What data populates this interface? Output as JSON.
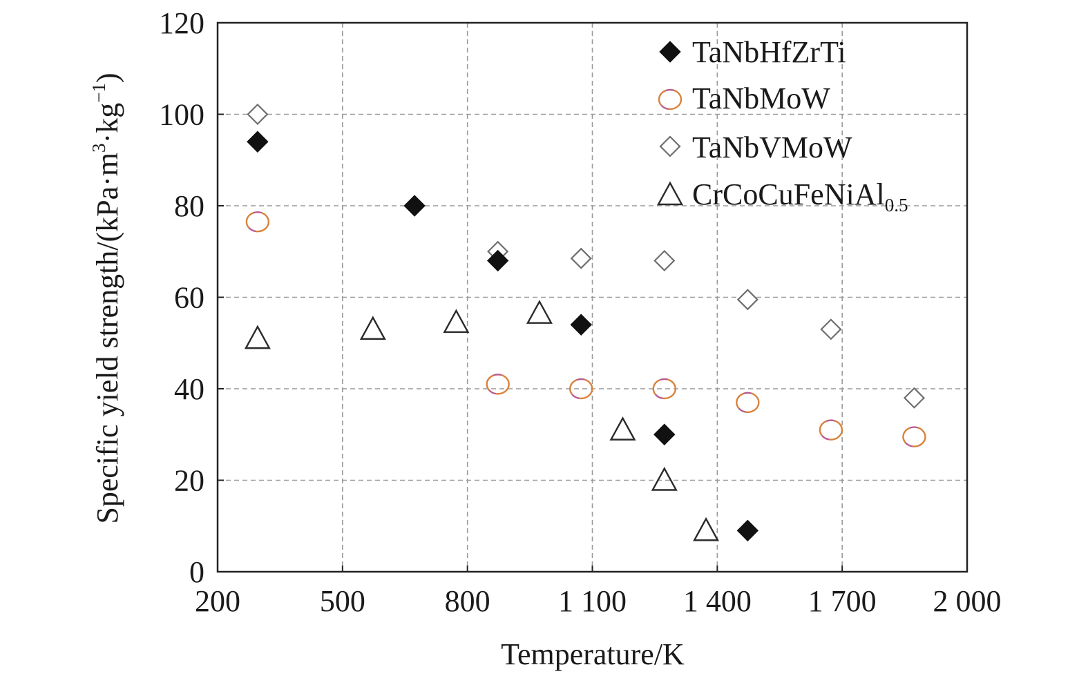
{
  "chart_data": {
    "type": "scatter",
    "xlabel": "Temperature/K",
    "ylabel": {
      "prefix": "Specific yield strength/(kPa·m",
      "exp1": "3",
      "middle": "·kg",
      "exp2": "−1",
      "suffix": ")"
    },
    "xlim": [
      200,
      2000
    ],
    "ylim": [
      0,
      120
    ],
    "x_ticks": [
      200,
      500,
      800,
      1100,
      1400,
      1700,
      2000
    ],
    "x_tick_labels": [
      "200",
      "500",
      "800",
      "1 100",
      "1 400",
      "1 700",
      "2 000"
    ],
    "y_ticks": [
      0,
      20,
      40,
      60,
      80,
      100,
      120
    ],
    "y_tick_labels": [
      "0",
      "20",
      "40",
      "60",
      "80",
      "100",
      "120"
    ],
    "grid": true,
    "legend_position": "top-right",
    "series": [
      {
        "name": "TaNbHfZrTi",
        "marker": "filled-diamond",
        "color": "#111111",
        "x": [
          296,
          673,
          873,
          1073,
          1273,
          1473
        ],
        "y": [
          94,
          80,
          68,
          54,
          30,
          9
        ]
      },
      {
        "name": "TaNbMoW",
        "marker": "open-circle",
        "color": "#d9823a",
        "color2": "#b85c8f",
        "x": [
          296,
          873,
          1073,
          1273,
          1473,
          1673,
          1873
        ],
        "y": [
          76.5,
          41,
          40,
          40,
          37,
          31,
          29.5
        ]
      },
      {
        "name": "TaNbVMoW",
        "marker": "open-diamond",
        "color": "#6e6e6e",
        "x": [
          296,
          873,
          1073,
          1273,
          1473,
          1673,
          1873
        ],
        "y": [
          100,
          70,
          68.5,
          68,
          59.5,
          53,
          38
        ]
      },
      {
        "name": "CrCoCuFeNiAl",
        "name_sub": "0.5",
        "marker": "open-triangle",
        "color": "#2a2a2a",
        "x": [
          296,
          573,
          773,
          973,
          1173,
          1273,
          1373
        ],
        "y": [
          51,
          53,
          54.5,
          56.5,
          31,
          20,
          9
        ]
      }
    ]
  }
}
